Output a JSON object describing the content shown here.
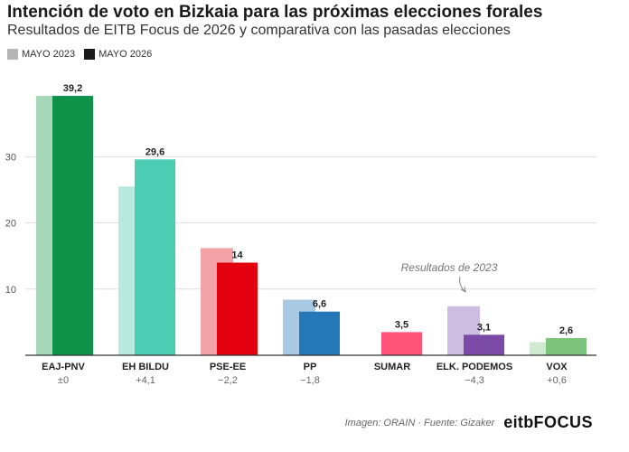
{
  "title": "Intención de voto en Bizkaia para las próximas elecciones forales",
  "subtitle": "Resultados de EITB Focus de 2026 y comparativa con las pasadas elecciones",
  "legend": {
    "prev_label": "MAYO 2023",
    "curr_label": "MAYO 2026"
  },
  "annotation": "Resultados de 2023",
  "footer": {
    "credit": "Imagen: ORAIN · Fuente: Gizaker",
    "logo_a": "eitb",
    "logo_b": "FOCUS"
  },
  "chart_data": {
    "type": "bar",
    "title": "Intención de voto en Bizkaia para las próximas elecciones forales",
    "subtitle": "Resultados de EITB Focus de 2026 y comparativa con las pasadas elecciones",
    "categories": [
      "EAJ-PNV",
      "EH BILDU",
      "PSE-EE",
      "PP",
      "SUMAR",
      "ELK. PODEMOS",
      "VOX"
    ],
    "changes": [
      "±0",
      "+4,1",
      "−2,2",
      "−1,8",
      "",
      "−4,3",
      "+0,6"
    ],
    "series": [
      {
        "name": "MAYO 2023",
        "values": [
          39.2,
          25.5,
          16.2,
          8.4,
          null,
          7.4,
          2.0
        ]
      },
      {
        "name": "MAYO 2026",
        "values": [
          39.2,
          29.6,
          14.0,
          6.6,
          3.5,
          3.1,
          2.6
        ]
      }
    ],
    "value_labels": [
      "39,2",
      "29,6",
      "14",
      "6,6",
      "3,5",
      "3,1",
      "2,6"
    ],
    "colors_2026": [
      "#0e9249",
      "#4ecdb5",
      "#e3000f",
      "#2478b8",
      "#ff5277",
      "#7b4aa6",
      "#7cc47c"
    ],
    "colors_2023": [
      "#a6d7b8",
      "#b8e9df",
      "#f3a3a8",
      "#a9c9e3",
      "",
      "#cdbde0",
      "#cfeacf"
    ],
    "y_ticks": [
      10,
      20,
      30
    ],
    "ylim": [
      0,
      40
    ],
    "grid": true,
    "legend_position": "top-left"
  }
}
